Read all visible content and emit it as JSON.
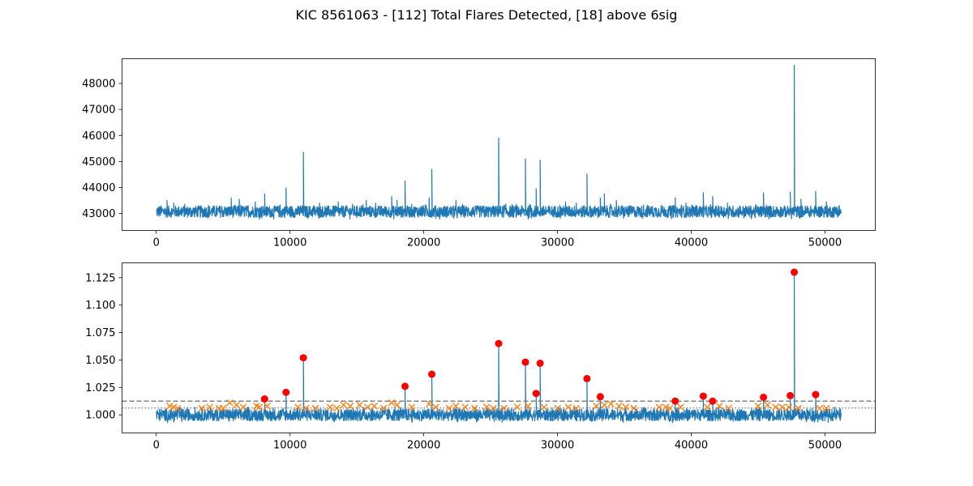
{
  "figure": {
    "title": "KIC 8561063 - [112] Total Flares Detected, [18] above 6sig"
  },
  "chart_data": [
    {
      "type": "line",
      "title": "",
      "xlabel": "",
      "ylabel": "",
      "xlim": [
        -2560,
        53760
      ],
      "ylim": [
        42350,
        48950
      ],
      "xticks": [
        0,
        10000,
        20000,
        30000,
        40000,
        50000
      ],
      "yticks": [
        43000,
        44000,
        45000,
        46000,
        47000,
        48000
      ],
      "grid": false,
      "color": "#1f77b4",
      "series": [
        {
          "baseline_range": [
            42850,
            43300
          ],
          "x_range": [
            0,
            51200
          ],
          "spikes": [
            {
              "x": 800,
              "y": 43500
            },
            {
              "x": 1300,
              "y": 43400
            },
            {
              "x": 5600,
              "y": 43600
            },
            {
              "x": 6200,
              "y": 43550
            },
            {
              "x": 7400,
              "y": 43450
            },
            {
              "x": 8100,
              "y": 43750
            },
            {
              "x": 9700,
              "y": 43980
            },
            {
              "x": 11000,
              "y": 45350
            },
            {
              "x": 12200,
              "y": 43400
            },
            {
              "x": 13600,
              "y": 43450
            },
            {
              "x": 15700,
              "y": 43500
            },
            {
              "x": 16400,
              "y": 43400
            },
            {
              "x": 17600,
              "y": 43650
            },
            {
              "x": 18000,
              "y": 43500
            },
            {
              "x": 18600,
              "y": 44250
            },
            {
              "x": 20400,
              "y": 43600
            },
            {
              "x": 20600,
              "y": 44700
            },
            {
              "x": 22400,
              "y": 43500
            },
            {
              "x": 25600,
              "y": 45900
            },
            {
              "x": 27600,
              "y": 45100
            },
            {
              "x": 28400,
              "y": 43950
            },
            {
              "x": 28700,
              "y": 45050
            },
            {
              "x": 30600,
              "y": 43450
            },
            {
              "x": 31400,
              "y": 43400
            },
            {
              "x": 32200,
              "y": 44520
            },
            {
              "x": 33200,
              "y": 43600
            },
            {
              "x": 33500,
              "y": 43750
            },
            {
              "x": 34400,
              "y": 43500
            },
            {
              "x": 38800,
              "y": 43600
            },
            {
              "x": 39600,
              "y": 43400
            },
            {
              "x": 40900,
              "y": 43800
            },
            {
              "x": 41600,
              "y": 43650
            },
            {
              "x": 42700,
              "y": 43400
            },
            {
              "x": 45400,
              "y": 43800
            },
            {
              "x": 47400,
              "y": 43820
            },
            {
              "x": 47700,
              "y": 48700
            },
            {
              "x": 48200,
              "y": 43550
            },
            {
              "x": 49300,
              "y": 43850
            },
            {
              "x": 50100,
              "y": 43450
            }
          ]
        }
      ]
    },
    {
      "type": "line",
      "title": "",
      "xlabel": "",
      "ylabel": "",
      "xlim": [
        -2560,
        53760
      ],
      "ylim": [
        0.9835,
        1.1385
      ],
      "xticks": [
        0,
        10000,
        20000,
        30000,
        40000,
        50000
      ],
      "yticks": [
        1.0,
        1.025,
        1.05,
        1.075,
        1.1,
        1.125
      ],
      "ytick_labels": [
        "1.000",
        "1.025",
        "1.050",
        "1.075",
        "1.100",
        "1.125"
      ],
      "grid": false,
      "colors": {
        "line": "#1f77b4",
        "candidates": "#ff7f0e",
        "significant": "#ff0000",
        "thresholds": "#808080"
      },
      "series": [
        {
          "name": "",
          "baseline_range": [
            0.9945,
            1.0055
          ],
          "x_range": [
            0,
            51200
          ]
        },
        {
          "name": "",
          "kind": "x-markers",
          "points": [
            [
              1000,
              1.008
            ],
            [
              1300,
              1.007
            ],
            [
              1600,
              1.006
            ],
            [
              3400,
              1.006
            ],
            [
              4000,
              1.007
            ],
            [
              4700,
              1.006
            ],
            [
              5000,
              1.006
            ],
            [
              5500,
              1.011
            ],
            [
              6000,
              1.009
            ],
            [
              6500,
              1.007
            ],
            [
              7500,
              1.008
            ],
            [
              7700,
              1.007
            ],
            [
              8300,
              1.008
            ],
            [
              10600,
              1.007
            ],
            [
              11200,
              1.006
            ],
            [
              11900,
              1.006
            ],
            [
              13000,
              1.007
            ],
            [
              13500,
              1.006
            ],
            [
              14000,
              1.009
            ],
            [
              14500,
              1.008
            ],
            [
              15200,
              1.009
            ],
            [
              15800,
              1.007
            ],
            [
              16300,
              1.008
            ],
            [
              17000,
              1.006
            ],
            [
              17600,
              1.011
            ],
            [
              18000,
              1.009
            ],
            [
              19100,
              1.007
            ],
            [
              20400,
              1.01
            ],
            [
              20900,
              1.007
            ],
            [
              21900,
              1.006
            ],
            [
              22400,
              1.008
            ],
            [
              23100,
              1.007
            ],
            [
              23800,
              1.006
            ],
            [
              24700,
              1.007
            ],
            [
              25200,
              1.006
            ],
            [
              26000,
              1.006
            ],
            [
              27000,
              1.007
            ],
            [
              27800,
              1.008
            ],
            [
              29000,
              1.007
            ],
            [
              30000,
              1.006
            ],
            [
              30800,
              1.007
            ],
            [
              31400,
              1.006
            ],
            [
              32900,
              1.008
            ],
            [
              33500,
              1.009
            ],
            [
              34000,
              1.01
            ],
            [
              34600,
              1.008
            ],
            [
              35100,
              1.007
            ],
            [
              35700,
              1.006
            ],
            [
              37600,
              1.007
            ],
            [
              38100,
              1.007
            ],
            [
              38400,
              1.006
            ],
            [
              39200,
              1.007
            ],
            [
              41200,
              1.007
            ],
            [
              42100,
              1.008
            ],
            [
              42800,
              1.006
            ],
            [
              45000,
              1.008
            ],
            [
              45700,
              1.009
            ],
            [
              46300,
              1.007
            ],
            [
              46800,
              1.007
            ],
            [
              47300,
              1.007
            ],
            [
              48000,
              1.006
            ],
            [
              49600,
              1.006
            ],
            [
              50100,
              1.006
            ]
          ]
        },
        {
          "name": "",
          "kind": "dot-markers",
          "points": [
            [
              8100,
              1.0145
            ],
            [
              9700,
              1.0205
            ],
            [
              11000,
              1.052
            ],
            [
              18600,
              1.026
            ],
            [
              20600,
              1.037
            ],
            [
              25600,
              1.065
            ],
            [
              27600,
              1.048
            ],
            [
              28400,
              1.0195
            ],
            [
              28700,
              1.047
            ],
            [
              32200,
              1.033
            ],
            [
              33200,
              1.0165
            ],
            [
              38800,
              1.0125
            ],
            [
              40900,
              1.017
            ],
            [
              41600,
              1.0125
            ],
            [
              45400,
              1.016
            ],
            [
              47400,
              1.0175
            ],
            [
              47700,
              1.13
            ],
            [
              49300,
              1.0185
            ]
          ]
        }
      ],
      "thresholds": [
        {
          "style": "dashed",
          "y": 1.0125
        },
        {
          "style": "dotted",
          "y": 1.0063
        }
      ]
    }
  ]
}
